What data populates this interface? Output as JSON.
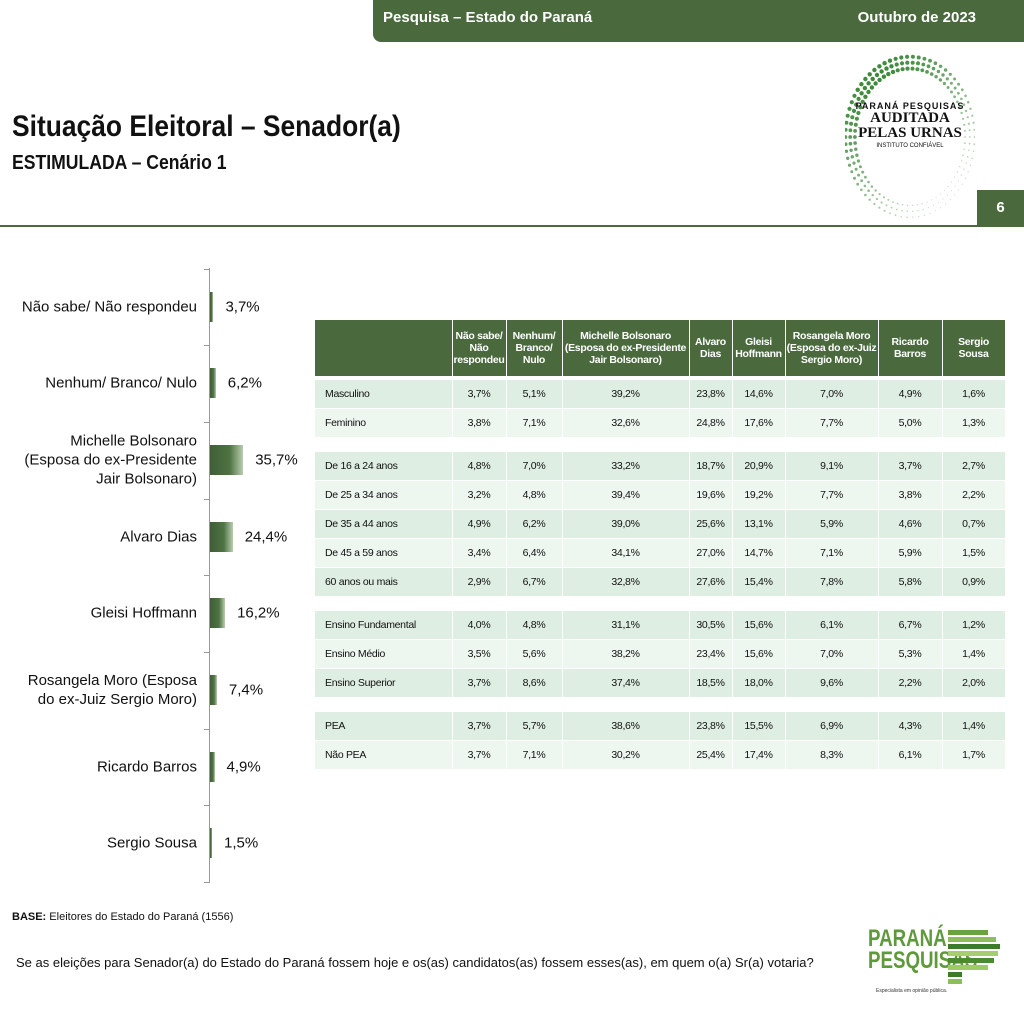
{
  "header": {
    "survey": "Pesquisa – Estado do Paraná",
    "date": "Outubro de 2023",
    "page": "6"
  },
  "title": "Situação Eleitoral – Senador(a)",
  "subtitle": "ESTIMULADA – Cenário 1",
  "seal": {
    "line1": "PARANÁ PESQUISAS",
    "line2": "AUDITADA",
    "line3": "PELAS URNAS",
    "line4": "INSTITUTO CONFIÁVEL"
  },
  "chart_data": {
    "type": "bar",
    "orientation": "horizontal",
    "categories": [
      "Não sabe/ Não respondeu",
      "Nenhum/ Branco/ Nulo",
      "Michelle Bolsonaro (Esposa do ex-Presidente Jair Bolsonaro)",
      "Alvaro Dias",
      "Gleisi Hoffmann",
      "Rosangela Moro (Esposa do ex-Juiz Sergio Moro)",
      "Ricardo Barros",
      "Sergio Sousa"
    ],
    "values": [
      3.7,
      6.2,
      35.7,
      24.4,
      16.2,
      7.4,
      4.9,
      1.5
    ],
    "labels": [
      "3,7%",
      "6,2%",
      "35,7%",
      "24,4%",
      "16,2%",
      "7,4%",
      "4,9%",
      "1,5%"
    ],
    "color": "#4a6a3e"
  },
  "table": {
    "headers": [
      "",
      "Não sabe/ Não respondeu",
      "Nenhum/ Branco/ Nulo",
      "Michelle Bolsonaro (Esposa do ex-Presidente Jair Bolsonaro)",
      "Alvaro Dias",
      "Gleisi Hoffmann",
      "Rosangela Moro (Esposa do ex-Juiz Sergio Moro)",
      "Ricardo Barros",
      "Sergio Sousa"
    ],
    "groups": [
      [
        [
          "Masculino",
          "3,7%",
          "5,1%",
          "39,2%",
          "23,8%",
          "14,6%",
          "7,0%",
          "4,9%",
          "1,6%"
        ],
        [
          "Feminino",
          "3,8%",
          "7,1%",
          "32,6%",
          "24,8%",
          "17,6%",
          "7,7%",
          "5,0%",
          "1,3%"
        ]
      ],
      [
        [
          "De 16 a 24 anos",
          "4,8%",
          "7,0%",
          "33,2%",
          "18,7%",
          "20,9%",
          "9,1%",
          "3,7%",
          "2,7%"
        ],
        [
          "De 25 a 34 anos",
          "3,2%",
          "4,8%",
          "39,4%",
          "19,6%",
          "19,2%",
          "7,7%",
          "3,8%",
          "2,2%"
        ],
        [
          "De 35 a 44 anos",
          "4,9%",
          "6,2%",
          "39,0%",
          "25,6%",
          "13,1%",
          "5,9%",
          "4,6%",
          "0,7%"
        ],
        [
          "De 45 a 59 anos",
          "3,4%",
          "6,4%",
          "34,1%",
          "27,0%",
          "14,7%",
          "7,1%",
          "5,9%",
          "1,5%"
        ],
        [
          "60 anos ou mais",
          "2,9%",
          "6,7%",
          "32,8%",
          "27,6%",
          "15,4%",
          "7,8%",
          "5,8%",
          "0,9%"
        ]
      ],
      [
        [
          "Ensino Fundamental",
          "4,0%",
          "4,8%",
          "31,1%",
          "30,5%",
          "15,6%",
          "6,1%",
          "6,7%",
          "1,2%"
        ],
        [
          "Ensino Médio",
          "3,5%",
          "5,6%",
          "38,2%",
          "23,4%",
          "15,6%",
          "7,0%",
          "5,3%",
          "1,4%"
        ],
        [
          "Ensino Superior",
          "3,7%",
          "8,6%",
          "37,4%",
          "18,5%",
          "18,0%",
          "9,6%",
          "2,2%",
          "2,0%"
        ]
      ],
      [
        [
          "PEA",
          "3,7%",
          "5,7%",
          "38,6%",
          "23,8%",
          "15,5%",
          "6,9%",
          "4,3%",
          "1,4%"
        ],
        [
          "Não PEA",
          "3,7%",
          "7,1%",
          "30,2%",
          "25,4%",
          "17,4%",
          "8,3%",
          "6,1%",
          "1,7%"
        ]
      ]
    ]
  },
  "footer": {
    "base_label": "BASE:",
    "base_text": "Eleitores do Estado do Paraná (1556)",
    "question": "Se as eleições para Senador(a) do Estado do Paraná fossem hoje e os(as) candidatos(as) fossem esses(as), em quem o(a) Sr(a) votaria?"
  },
  "logo": {
    "line1": "PARANÁ",
    "line2": "PESQUISAS",
    "tagline": "Especialista em opinião pública."
  }
}
